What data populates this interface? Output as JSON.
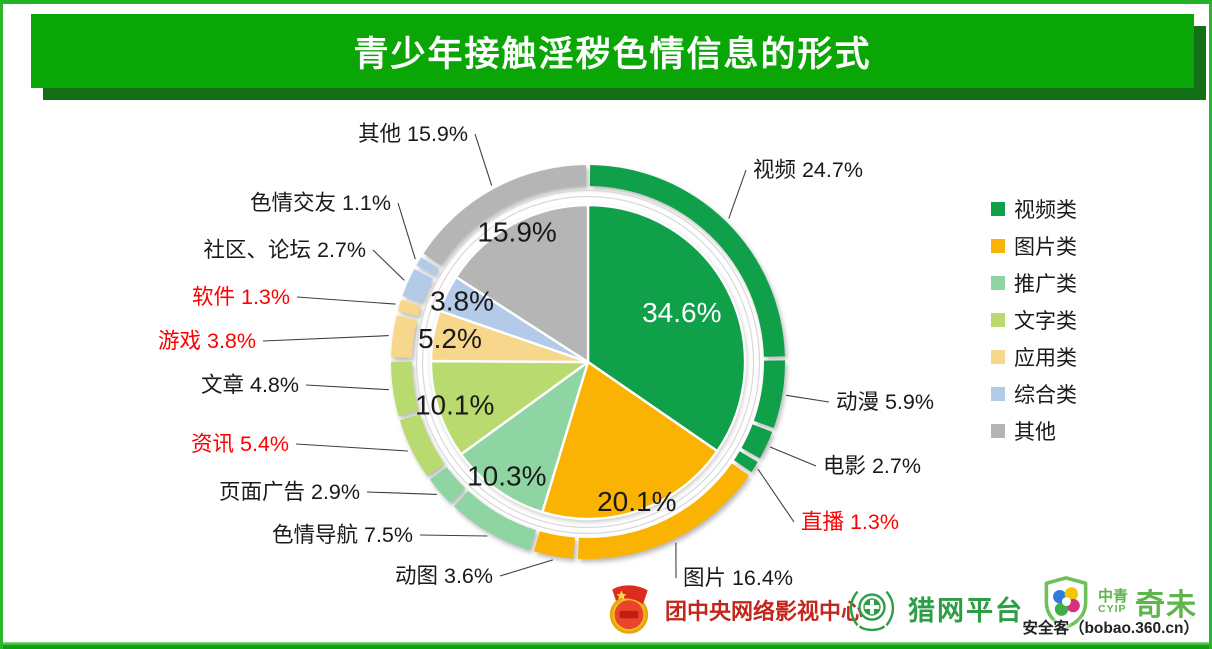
{
  "page": {
    "title": "青少年接触淫秽色情信息的形式",
    "colors": {
      "banner_green": "#0AA605",
      "banner_shadow_green": "#147016",
      "frame_green": "#2DB42D",
      "highlight_red": "#FF0000"
    }
  },
  "chart_data": {
    "type": "pie",
    "subtype": "nested-donut",
    "title": "青少年接触淫秽色情信息的形式",
    "legend_position": "right",
    "categories": [
      {
        "label": "视频类",
        "value": 34.6,
        "color": "#11A04A",
        "label_color": "#ffffff"
      },
      {
        "label": "图片类",
        "value": 20.1,
        "color": "#FBB303",
        "label_color": "#1a1a1a"
      },
      {
        "label": "推广类",
        "value": 10.3,
        "color": "#8FD5A3",
        "label_color": "#1a1a1a"
      },
      {
        "label": "文字类",
        "value": 10.1,
        "color": "#B9DA6F",
        "label_color": "#1a1a1a"
      },
      {
        "label": "应用类",
        "value": 5.2,
        "color": "#F6D78C",
        "label_color": "#1a1a1a"
      },
      {
        "label": "综合类",
        "value": 3.8,
        "color": "#B3CBE8",
        "label_color": "#1a1a1a"
      },
      {
        "label": "其他",
        "value": 15.9,
        "color": "#B5B5B5",
        "label_color": "#1a1a1a"
      }
    ],
    "items": [
      {
        "label": "视频",
        "value": 24.7,
        "category": "视频类",
        "text_color": "#1a1a1a"
      },
      {
        "label": "动漫",
        "value": 5.9,
        "category": "视频类",
        "text_color": "#1a1a1a"
      },
      {
        "label": "电影",
        "value": 2.7,
        "category": "视频类",
        "text_color": "#1a1a1a"
      },
      {
        "label": "直播",
        "value": 1.3,
        "category": "视频类",
        "text_color": "#FF0000"
      },
      {
        "label": "图片",
        "value": 16.4,
        "category": "图片类",
        "text_color": "#1a1a1a"
      },
      {
        "label": "动图",
        "value": 3.6,
        "category": "图片类",
        "text_color": "#1a1a1a"
      },
      {
        "label": "色情导航",
        "value": 7.5,
        "category": "推广类",
        "text_color": "#1a1a1a"
      },
      {
        "label": "页面广告",
        "value": 2.9,
        "category": "推广类",
        "text_color": "#1a1a1a"
      },
      {
        "label": "资讯",
        "value": 5.4,
        "category": "文字类",
        "text_color": "#FF0000"
      },
      {
        "label": "文章",
        "value": 4.8,
        "category": "文字类",
        "text_color": "#1a1a1a"
      },
      {
        "label": "游戏",
        "value": 3.8,
        "category": "应用类",
        "text_color": "#FF0000"
      },
      {
        "label": "软件",
        "value": 1.3,
        "category": "应用类",
        "text_color": "#FF0000"
      },
      {
        "label": "社区、论坛",
        "value": 2.7,
        "category": "综合类",
        "text_color": "#1a1a1a"
      },
      {
        "label": "色情交友",
        "value": 1.1,
        "category": "综合类",
        "text_color": "#1a1a1a"
      },
      {
        "label": "其他",
        "value": 15.9,
        "category": "其他",
        "text_color": "#1a1a1a"
      }
    ]
  },
  "footer": {
    "org1": "团中央网络影视中心",
    "org2": "猎网平台",
    "org3_small_top": "中青",
    "org3_small_bottom": "CYIP",
    "org3_large": "奇未",
    "watermark": "安全客（bobao.360.cn）"
  }
}
